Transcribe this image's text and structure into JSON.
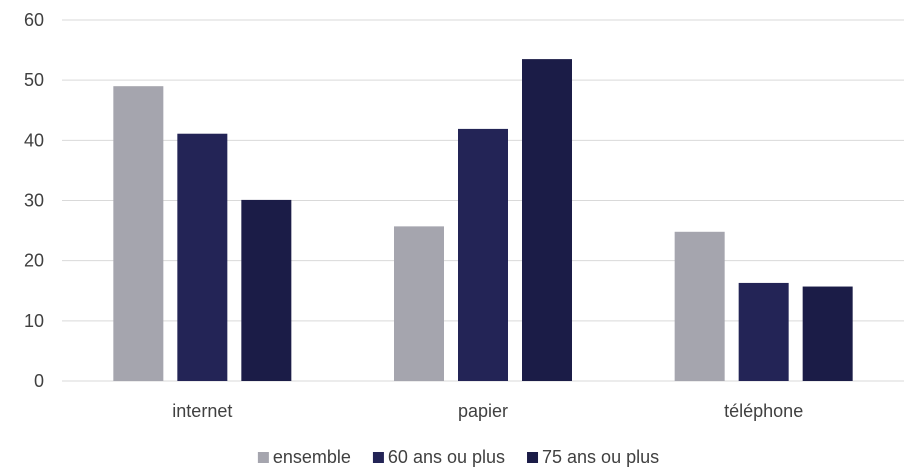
{
  "chart_data": {
    "type": "bar",
    "title": "",
    "xlabel": "",
    "ylabel": "",
    "categories": [
      "internet",
      "papier",
      "téléphone"
    ],
    "ylim": [
      0,
      60
    ],
    "yticks": [
      0,
      10,
      20,
      30,
      40,
      50,
      60
    ],
    "grid": true,
    "legend_position": "bottom",
    "series": [
      {
        "name": "ensemble",
        "color": "#a5a5ae",
        "values": [
          49,
          25.7,
          24.8
        ]
      },
      {
        "name": "60 ans ou plus",
        "color": "#232456",
        "values": [
          41.1,
          41.9,
          16.3
        ]
      },
      {
        "name": "75 ans ou plus",
        "color": "#1b1c47",
        "values": [
          30.1,
          53.5,
          15.7
        ]
      }
    ]
  }
}
